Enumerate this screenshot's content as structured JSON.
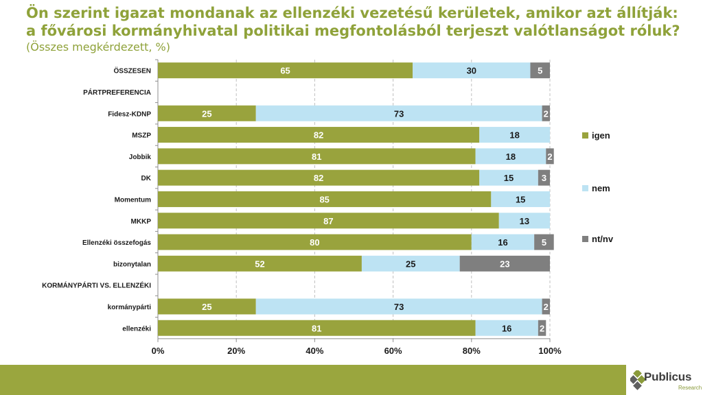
{
  "header": {
    "title": "Ön szerint igazat mondanak az ellenzéki vezetésű kerületek, amikor azt állítják: a fővárosi kormányhivatal politikai megfontolásból terjeszt valótlanságot róluk?",
    "subtitle": "(Összes megkérdezett, %)"
  },
  "brand": {
    "name": "Publicus",
    "sub": "Research",
    "footer_color": "#9aa63e"
  },
  "chart_data": {
    "type": "bar",
    "orientation": "horizontal",
    "stacked": true,
    "title": "Ön szerint igazat mondanak az ellenzéki vezetésű kerületek, amikor azt állítják: a fővárosi kormányhivatal politikai megfontolásból terjeszt valótlanságot róluk?",
    "subtitle": "(Összes megkérdezett, %)",
    "categories": [
      "ÖSSZESEN",
      "PÁRTPREFERENCIA",
      "Fidesz-KDNP",
      "MSZP",
      "Jobbik",
      "DK",
      "Momentum",
      "MKKP",
      "Ellenzéki összefogás",
      "bizonytalan",
      "KORMÁNYPÁRTI VS. ELLENZÉKI",
      "kormánypárti",
      "ellenzéki"
    ],
    "series": [
      {
        "name": "igen",
        "color": "#99a33d",
        "label_color": "#ffffff",
        "values": [
          65,
          null,
          25,
          82,
          81,
          82,
          85,
          87,
          80,
          52,
          null,
          25,
          81
        ]
      },
      {
        "name": "nem",
        "color": "#bde3f3",
        "label_color": "#1a1a1a",
        "values": [
          30,
          null,
          73,
          18,
          18,
          15,
          15,
          13,
          16,
          25,
          null,
          73,
          16
        ]
      },
      {
        "name": "nt/nv",
        "color": "#7f7f7f",
        "label_color": "#ffffff",
        "values": [
          5,
          null,
          2,
          null,
          2,
          3,
          null,
          null,
          5,
          23,
          null,
          2,
          2
        ]
      }
    ],
    "xlim": [
      0,
      100
    ],
    "xticks": [
      0,
      20,
      40,
      60,
      80,
      100
    ],
    "xtick_labels": [
      "0%",
      "20%",
      "40%",
      "60%",
      "80%",
      "100%"
    ],
    "grid": "vertical-dashed",
    "legend": "right"
  }
}
